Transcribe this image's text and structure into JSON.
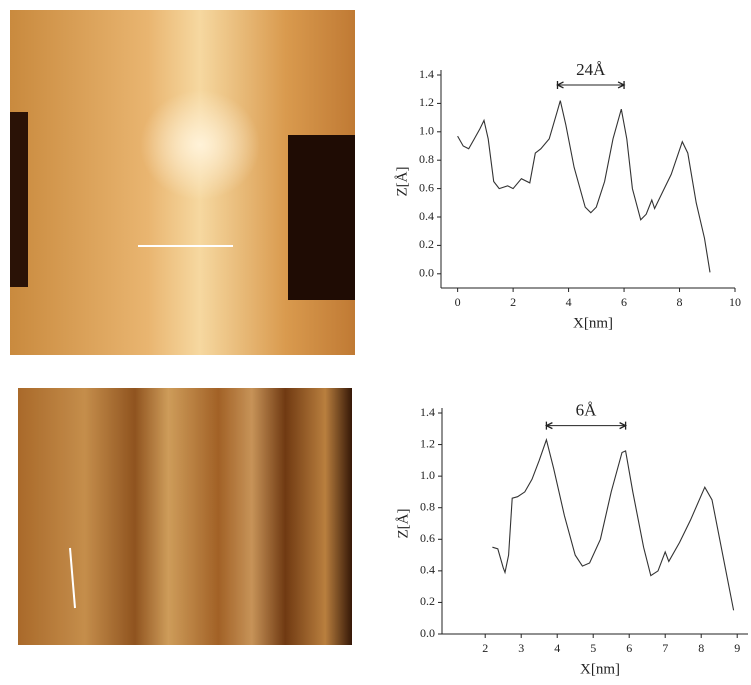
{
  "chart_data": [
    {
      "type": "line",
      "color": "#333333",
      "x_label": "X[nm]",
      "y_label": "Z[Å]",
      "x": [
        0,
        0.2,
        0.4,
        0.6,
        0.8,
        0.95,
        1.1,
        1.3,
        1.5,
        1.8,
        2.0,
        2.3,
        2.6,
        2.8,
        3.0,
        3.3,
        3.6,
        3.7,
        3.9,
        4.2,
        4.6,
        4.8,
        5.0,
        5.3,
        5.6,
        5.9,
        6.1,
        6.3,
        6.6,
        6.8,
        7.0,
        7.1,
        7.4,
        7.7,
        8.1,
        8.3,
        8.6,
        8.9,
        9.1
      ],
      "values": [
        0.97,
        0.9,
        0.88,
        0.95,
        1.02,
        1.08,
        0.95,
        0.65,
        0.6,
        0.62,
        0.6,
        0.67,
        0.64,
        0.85,
        0.88,
        0.95,
        1.15,
        1.22,
        1.05,
        0.75,
        0.47,
        0.43,
        0.47,
        0.65,
        0.95,
        1.16,
        0.95,
        0.6,
        0.38,
        0.42,
        0.52,
        0.46,
        0.58,
        0.7,
        0.93,
        0.85,
        0.5,
        0.25,
        0.01
      ],
      "xlim": [
        -0.6,
        10
      ],
      "xticks": [
        0,
        2,
        4,
        6,
        8,
        10
      ],
      "ylim": [
        -0.1,
        1.4
      ],
      "yticks": [
        {
          "value": 0,
          "label": "0.0"
        },
        0.2,
        0.4,
        0.6,
        0.8,
        {
          "value": 1,
          "label": "1.0"
        },
        1.2,
        1.4
      ],
      "annotation": {
        "text": "24Å",
        "x": [
          3.6,
          6.0
        ],
        "y": 1.33
      }
    },
    {
      "type": "line",
      "color": "#333333",
      "x_label": "X[nm]",
      "y_label": "Z[Å]",
      "x": [
        2.2,
        2.35,
        2.5,
        2.55,
        2.65,
        2.75,
        2.9,
        3.1,
        3.3,
        3.5,
        3.7,
        3.9,
        4.2,
        4.5,
        4.7,
        4.9,
        5.2,
        5.5,
        5.8,
        5.9,
        6.1,
        6.4,
        6.6,
        6.8,
        7.0,
        7.1,
        7.4,
        7.7,
        8.1,
        8.3,
        8.6,
        8.9
      ],
      "values": [
        0.55,
        0.54,
        0.42,
        0.39,
        0.5,
        0.86,
        0.87,
        0.9,
        0.98,
        1.1,
        1.23,
        1.05,
        0.75,
        0.5,
        0.43,
        0.45,
        0.6,
        0.9,
        1.15,
        1.16,
        0.9,
        0.55,
        0.37,
        0.4,
        0.52,
        0.46,
        0.58,
        0.72,
        0.93,
        0.85,
        0.5,
        0.15
      ],
      "xlim": [
        0.8,
        9.3
      ],
      "xticks": [
        2,
        3,
        4,
        5,
        6,
        7,
        8,
        9
      ],
      "ylim": [
        0,
        1.4
      ],
      "yticks": [
        {
          "value": 0,
          "label": "0.0"
        },
        0.2,
        0.4,
        0.6,
        0.8,
        {
          "value": 1,
          "label": "1.0"
        },
        1.2,
        1.4
      ],
      "annotation": {
        "text": "6Å",
        "x": [
          3.7,
          5.9
        ],
        "y": 1.32
      }
    }
  ]
}
